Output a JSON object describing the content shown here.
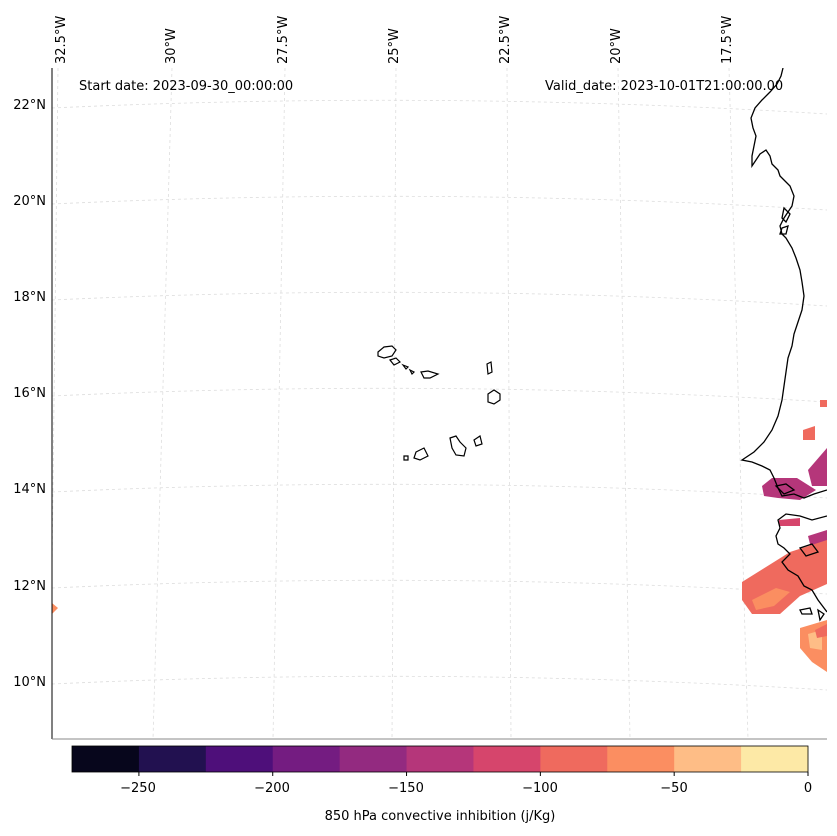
{
  "start_date": "Start date: 2023-09-30_00:00:00",
  "valid_date": "Valid_date: 2023-10-01T21:00:00.00",
  "lon_labels": [
    "32.5°W",
    "30°W",
    "27.5°W",
    "25°W",
    "22.5°W",
    "20°W",
    "17.5°W"
  ],
  "lat_labels": [
    "22°N",
    "20°N",
    "18°N",
    "16°N",
    "14°N",
    "12°N",
    "10°N"
  ],
  "colorbar": {
    "title": "850 hPa convective inhibition (j/Kg)",
    "ticks": [
      "−250",
      "−200",
      "−150",
      "−100",
      "−50",
      "0"
    ],
    "colors": [
      "#07061c",
      "#221150",
      "#4e0f7a",
      "#741c81",
      "#932a80",
      "#b5367a",
      "#d6456c",
      "#ef6a5e",
      "#fb8e61",
      "#febd86",
      "#fde9a6"
    ]
  }
}
